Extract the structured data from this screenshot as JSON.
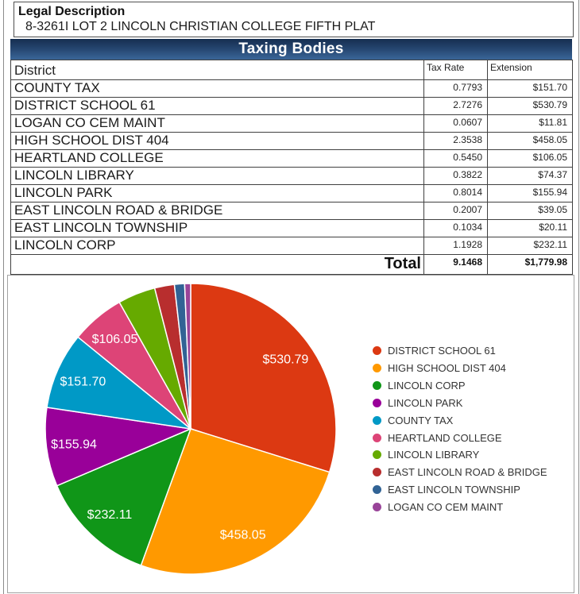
{
  "legal": {
    "title": "Legal Description",
    "value": "8-3261I LOT 2 LINCOLN CHRISTIAN COLLEGE FIFTH PLAT"
  },
  "table": {
    "title": "Taxing Bodies",
    "columns": [
      "District",
      "Tax Rate",
      "Extension"
    ],
    "rows": [
      {
        "district": "COUNTY TAX",
        "tax_rate": "0.7793",
        "extension": "$151.70"
      },
      {
        "district": "DISTRICT SCHOOL 61",
        "tax_rate": "2.7276",
        "extension": "$530.79"
      },
      {
        "district": "LOGAN CO CEM MAINT",
        "tax_rate": "0.0607",
        "extension": "$11.81"
      },
      {
        "district": "HIGH SCHOOL DIST 404",
        "tax_rate": "2.3538",
        "extension": "$458.05"
      },
      {
        "district": "HEARTLAND COLLEGE",
        "tax_rate": "0.5450",
        "extension": "$106.05"
      },
      {
        "district": "LINCOLN LIBRARY",
        "tax_rate": "0.3822",
        "extension": "$74.37"
      },
      {
        "district": "LINCOLN PARK",
        "tax_rate": "0.8014",
        "extension": "$155.94"
      },
      {
        "district": "EAST LINCOLN ROAD & BRIDGE",
        "tax_rate": "0.2007",
        "extension": "$39.05"
      },
      {
        "district": "EAST LINCOLN TOWNSHIP",
        "tax_rate": "0.1034",
        "extension": "$20.11"
      },
      {
        "district": "LINCOLN CORP",
        "tax_rate": "1.1928",
        "extension": "$232.11"
      }
    ],
    "total": {
      "label": "Total",
      "tax_rate": "9.1468",
      "extension": "$1,779.98"
    }
  },
  "chart_data": {
    "type": "pie",
    "title": "",
    "start_angle_deg": 0,
    "direction": "clockwise",
    "total": 1779.98,
    "label_min_fraction": 0.05,
    "legend_position": "right",
    "series": [
      {
        "label": "DISTRICT SCHOOL 61",
        "value": 530.79,
        "display": "$530.79",
        "color": "#dc3912"
      },
      {
        "label": "HIGH SCHOOL DIST 404",
        "value": 458.05,
        "display": "$458.05",
        "color": "#ff9900"
      },
      {
        "label": "LINCOLN CORP",
        "value": 232.11,
        "display": "$232.11",
        "color": "#109618"
      },
      {
        "label": "LINCOLN PARK",
        "value": 155.94,
        "display": "$155.94",
        "color": "#990099"
      },
      {
        "label": "COUNTY TAX",
        "value": 151.7,
        "display": "$151.70",
        "color": "#0099c6"
      },
      {
        "label": "HEARTLAND COLLEGE",
        "value": 106.05,
        "display": "$106.05",
        "color": "#dd4477"
      },
      {
        "label": "LINCOLN LIBRARY",
        "value": 74.37,
        "display": "$74.37",
        "color": "#66aa00"
      },
      {
        "label": "EAST LINCOLN ROAD & BRIDGE",
        "value": 39.05,
        "display": "$39.05",
        "color": "#b82e2e"
      },
      {
        "label": "EAST LINCOLN TOWNSHIP",
        "value": 20.11,
        "display": "$20.11",
        "color": "#316395"
      },
      {
        "label": "LOGAN CO CEM MAINT",
        "value": 11.81,
        "display": "$11.81",
        "color": "#994499"
      }
    ]
  },
  "colors": {
    "header_bar_top": "#162e50",
    "header_bar_bottom": "#3a6699",
    "table_border": "#404040",
    "chart_border": "#a2a2a2"
  }
}
